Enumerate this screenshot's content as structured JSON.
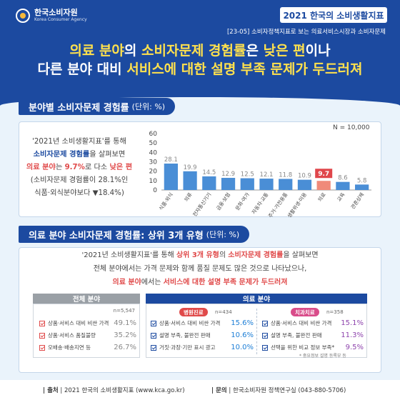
{
  "header": {
    "org_name": "한국소비자원",
    "org_name_en": "Korea Consumer Agency",
    "report_title": "2021 한국의 소비생활지표",
    "subtitle": "[23-05] 소비자정책지표로 보는 의료서비스시장과 소비자문제",
    "headline": {
      "line1_a": "의료 분야",
      "line1_b": "의 ",
      "line1_c": "소비자문제 경험률",
      "line1_d": "은 ",
      "line1_e": "낮은 편",
      "line1_f": "이나",
      "line2_a": "다른 분야 대비 ",
      "line2_b": "서비스에 대한 설명 부족 문제가 두드러져"
    }
  },
  "section1": {
    "title": "분야별 소비자문제 경험률",
    "unit": "(단위: %)",
    "desc": {
      "p1": "'2021년 소비생활지표'를 통해",
      "p2a": "소비자문제 경험률",
      "p2b": "을 살펴보면",
      "p3a": "의료 분야",
      "p3b": "는 ",
      "p3c": "9.7%",
      "p3d": "로 다소 ",
      "p3e": "낮은 편",
      "p4": "(소비자문제 경험률이 28.1%인",
      "p5": "식품·외식분야보다 ▼18.4%)"
    },
    "n_label": "N = 10,000"
  },
  "chart_data": {
    "type": "bar",
    "categories": [
      "식품·외식",
      "의류",
      "전자통신기기",
      "금융·보험",
      "문화·여가",
      "자동차·교통",
      "주거·가전용품",
      "생활위생·미용",
      "의료",
      "교육",
      "관혼상제"
    ],
    "values": [
      28.1,
      19.9,
      14.5,
      12.9,
      12.5,
      12.1,
      11.8,
      10.9,
      9.7,
      8.6,
      5.8
    ],
    "value_labels": [
      "28.1",
      "19.9",
      "14.5",
      "12.9",
      "12.5",
      "12.1",
      "11.8",
      "10.9",
      "9.7",
      "8.6",
      "5.8"
    ],
    "ylim": [
      0,
      60
    ],
    "yticks": [
      "0",
      "10",
      "20",
      "30",
      "40",
      "50",
      "60"
    ],
    "highlight_index": 8,
    "colors": {
      "bar": "#4a8ed6",
      "highlight": "#f08a7a",
      "highlight_label_bg": "#e0474c"
    },
    "grid": false
  },
  "section2": {
    "title": "의료 분야 소비자문제 경험률: 상위 3개 유형",
    "unit": "(단위: %)",
    "summary": {
      "l1a": "'2021년 소비생활지표'를 통해 ",
      "l1b": "상위 3개 유형",
      "l1c": "의 ",
      "l1d": "소비자문제 경험률",
      "l1e": "을 살펴보면",
      "l2": "전체 분야에서는 가격 문제와 함께 품질 문제도 많은 것으로 나타났으나,",
      "l3a": "의료 분야",
      "l3b": "에서는 ",
      "l3c": "서비스에 대한 설명 부족 문제가 두드러져"
    },
    "all_panel": {
      "head": "전체 분야",
      "n": "n=5,547",
      "rows": [
        {
          "label": "상품·서비스 대비 비싼 가격",
          "value": "49.1%"
        },
        {
          "label": "상품·서비스 품질불량",
          "value": "35.2%"
        },
        {
          "label": "오배송·배송지연 등",
          "value": "26.7%"
        }
      ]
    },
    "medical_panel": {
      "head": "의료 분야",
      "hospital": {
        "tag": "병원진료",
        "n": "n=434",
        "rows": [
          {
            "label": "상품·서비스 대비 비싼 가격",
            "value": "15.6%"
          },
          {
            "label": "설명 부족, 불완전 판매",
            "value": "10.6%"
          },
          {
            "label": "거짓·과장·기만 표시 광고",
            "value": "10.0%"
          }
        ]
      },
      "dental": {
        "tag": "치과치료",
        "n": "n=358",
        "rows": [
          {
            "label": "상품·서비스 대비 비싼 가격",
            "value": "15.1%"
          },
          {
            "label": "설명 부족, 불완전 판매",
            "value": "11.3%"
          },
          {
            "label": "선택을 위한 비교 정보 부족*",
            "value": "9.5%"
          }
        ],
        "note": "* 중요정보 설명 등록부 등"
      }
    }
  },
  "footer": {
    "source_label": "출처",
    "source_text": "2021 한국의 소비생활지표 (www.kca.go.kr)",
    "contact_label": "문의",
    "contact_text": "한국소비자원 정책연구실 (043-880-5706)"
  }
}
